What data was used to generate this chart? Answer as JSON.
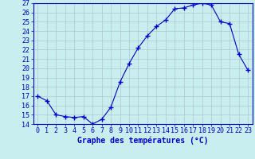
{
  "hours": [
    0,
    1,
    2,
    3,
    4,
    5,
    6,
    7,
    8,
    9,
    10,
    11,
    12,
    13,
    14,
    15,
    16,
    17,
    18,
    19,
    20,
    21,
    22,
    23
  ],
  "temperatures": [
    17.0,
    16.5,
    15.0,
    14.8,
    14.7,
    14.8,
    14.0,
    14.5,
    15.8,
    18.5,
    20.5,
    22.2,
    23.5,
    24.5,
    25.2,
    26.4,
    26.5,
    26.8,
    27.0,
    26.8,
    25.0,
    24.8,
    21.5,
    19.8
  ],
  "ylim": [
    14,
    27
  ],
  "yticks": [
    14,
    15,
    16,
    17,
    18,
    19,
    20,
    21,
    22,
    23,
    24,
    25,
    26,
    27
  ],
  "xlabel": "Graphe des températures (°C)",
  "line_color": "#0000cc",
  "marker": "+",
  "bg_color": "#c8eef0",
  "grid_color": "#b0c8d0",
  "axis_label_fontsize": 7,
  "tick_fontsize": 6
}
